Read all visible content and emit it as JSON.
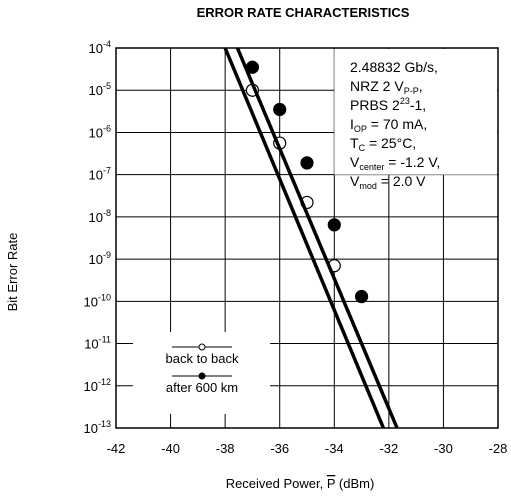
{
  "chart_data": {
    "type": "line",
    "title": "ERROR RATE CHARACTERISTICS",
    "xlabel_text": "Received Power, ",
    "xlabel_symbol": "P",
    "xlabel_unit": " (dBm)",
    "ylabel": "Bit Error Rate",
    "xlim": [
      -42,
      -28
    ],
    "y_scale": "log",
    "ylim": [
      1e-13,
      0.0001
    ],
    "x_ticks": [
      {
        "value": -42,
        "label": "-42"
      },
      {
        "value": -40,
        "label": "-40"
      },
      {
        "value": -38,
        "label": "-38"
      },
      {
        "value": -36,
        "label": "-36"
      },
      {
        "value": -34,
        "label": "-34"
      },
      {
        "value": -32,
        "label": "-32"
      },
      {
        "value": -30,
        "label": "-30"
      },
      {
        "value": -28,
        "label": "-28"
      }
    ],
    "y_ticks": [
      {
        "value": 0.0001,
        "base": "10",
        "exp": "-4"
      },
      {
        "value": 1e-05,
        "base": "10",
        "exp": "-5"
      },
      {
        "value": 1e-06,
        "base": "10",
        "exp": "-6"
      },
      {
        "value": 1e-07,
        "base": "10",
        "exp": "-7"
      },
      {
        "value": 1e-08,
        "base": "10",
        "exp": "-8"
      },
      {
        "value": 1e-09,
        "base": "10",
        "exp": "-9"
      },
      {
        "value": 1e-10,
        "base": "10",
        "exp": "-10"
      },
      {
        "value": 1e-11,
        "base": "10",
        "exp": "-11"
      },
      {
        "value": 1e-12,
        "base": "10",
        "exp": "-12"
      },
      {
        "value": 1e-13,
        "base": "10",
        "exp": "-13"
      }
    ],
    "grid": true,
    "legend_position": "bottom-left",
    "series": [
      {
        "name": "back to back",
        "marker": "open-circle",
        "points": [
          {
            "x": -37.0,
            "y": 1e-05
          },
          {
            "x": -36.0,
            "y": 5.6e-07
          },
          {
            "x": -35.0,
            "y": 2.2e-08
          },
          {
            "x": -34.0,
            "y": 7e-10
          }
        ],
        "line": [
          {
            "x": -38.0,
            "y": 0.0001
          },
          {
            "x": -32.2,
            "y": 1e-13
          }
        ]
      },
      {
        "name": "after 600 km",
        "marker": "filled-circle",
        "points": [
          {
            "x": -37.0,
            "y": 3.5e-05
          },
          {
            "x": -36.0,
            "y": 3.5e-06
          },
          {
            "x": -35.0,
            "y": 1.9e-07
          },
          {
            "x": -34.0,
            "y": 6.5e-09
          },
          {
            "x": -33.0,
            "y": 1.3e-10
          }
        ],
        "line": [
          {
            "x": -37.55,
            "y": 0.0001
          },
          {
            "x": -31.7,
            "y": 1e-13
          }
        ]
      }
    ],
    "annotation_lines": [
      {
        "parts": [
          {
            "t": "2.48832 Gb/s,"
          }
        ]
      },
      {
        "parts": [
          {
            "t": "NRZ 2 V"
          },
          {
            "t": "P-P",
            "sub": true
          },
          {
            "t": ","
          }
        ]
      },
      {
        "parts": [
          {
            "t": "PRBS 2"
          },
          {
            "t": "23",
            "sup": true
          },
          {
            "t": "-1,"
          }
        ]
      },
      {
        "parts": [
          {
            "t": "I"
          },
          {
            "t": "OP",
            "sub": true
          },
          {
            "t": " = 70 mA,"
          }
        ]
      },
      {
        "parts": [
          {
            "t": "T"
          },
          {
            "t": "C",
            "sub": true
          },
          {
            "t": " = 25°C,"
          }
        ]
      },
      {
        "parts": [
          {
            "t": "V"
          },
          {
            "t": "center",
            "sub": true
          },
          {
            "t": " = -1.2 V,"
          }
        ]
      },
      {
        "parts": [
          {
            "t": "V"
          },
          {
            "t": "mod",
            "sub": true
          },
          {
            "t": " = 2.0 V"
          }
        ]
      }
    ]
  }
}
